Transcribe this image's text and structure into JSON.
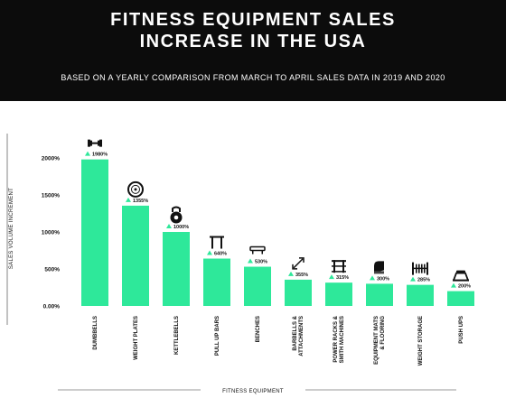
{
  "header": {
    "title": "FITNESS EQUIPMENT SALES\nINCREASE IN THE USA",
    "subtitle": "BASED ON A YEARLY COMPARISON FROM MARCH TO APRIL SALES DATA IN 2019 AND 2020"
  },
  "colors": {
    "bar": "#2ee89a",
    "marker": "#2ee89a",
    "header_bg": "#0c0c0c"
  },
  "chart_data": {
    "type": "bar",
    "title": "FITNESS EQUIPMENT SALES INCREASE IN THE USA",
    "subtitle": "BASED ON A YEARLY COMPARISON FROM MARCH TO APRIL SALES DATA IN 2019 AND 2020",
    "xlabel": "FITNESS EQUIPMENT",
    "ylabel": "SALES VOLUME INCREMENT",
    "ylim": [
      0,
      2000
    ],
    "yticks": [
      "0.00%",
      "500%",
      "1000%",
      "1500%",
      "2000%"
    ],
    "grid": false,
    "categories": [
      "DUMBBELLS",
      "WEIGHT PLATES",
      "KETTLEBELLS",
      "PULL UP BARS",
      "BENCHES",
      "BARBELLS & ATTACHMENTS",
      "POWER RACKS & SMITH MACHINES",
      "EQUIPMENT MATS & FLOORING",
      "WEIGHT STORAGE",
      "PUSH UPS"
    ],
    "values": [
      1980,
      1355,
      1000,
      640,
      530,
      355,
      315,
      300,
      285,
      200
    ],
    "value_labels": [
      "1980%",
      "1355%",
      "1000%",
      "640%",
      "530%",
      "355%",
      "315%",
      "300%",
      "285%",
      "200%"
    ],
    "icons": [
      "dumbbell-icon",
      "weight-plate-icon",
      "kettlebell-icon",
      "pull-up-bar-icon",
      "bench-icon",
      "barbell-attachment-icon",
      "power-rack-icon",
      "mat-icon",
      "weight-storage-icon",
      "push-up-handle-icon"
    ]
  }
}
